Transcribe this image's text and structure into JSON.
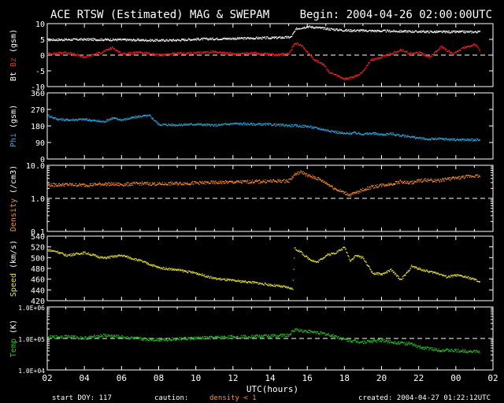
{
  "header": {
    "title": "ACE RTSW (Estimated) MAG & SWEPAM",
    "begin": "Begin: 2004-04-26 02:00:00UTC"
  },
  "footer": {
    "start_doy": "start DOY: 117",
    "caution_label": "caution:",
    "caution_value": "density < 1",
    "created": "created: 2004-04-27 01:22:12UTC"
  },
  "colors": {
    "background": "#000000",
    "axes": "#ffffff",
    "bt": "#ffffff",
    "bz": "#ff2020",
    "phi": "#29a8e0",
    "density": "#ff8c2a",
    "speed": "#e8e030",
    "temp": "#22c822"
  },
  "chart_data": {
    "type": "scatter",
    "x_label": "UTC(hours)",
    "x_ticks": [
      "02",
      "04",
      "06",
      "08",
      "10",
      "12",
      "14",
      "16",
      "18",
      "20",
      "22",
      "00",
      "02"
    ],
    "x_range_hours": [
      2,
      26
    ],
    "panels": [
      {
        "id": "mag",
        "ylabel_parts": [
          {
            "text": "Bt",
            "color": "#ffffff"
          },
          {
            "text": "Bz",
            "color": "#ff2020"
          },
          {
            "text": "(gsm)",
            "color": "#ffffff"
          }
        ],
        "ylim": [
          -10,
          10
        ],
        "scale": "linear",
        "yticks": [
          10,
          5,
          0,
          -5,
          -10
        ],
        "ytick_labels": [
          "10",
          "5",
          "0",
          "-5",
          "-10"
        ],
        "dashed_reference": 0,
        "series": [
          {
            "name": "Bt",
            "color": "#ffffff",
            "points": [
              [
                2,
                5.0
              ],
              [
                4,
                5.1
              ],
              [
                6,
                5.0
              ],
              [
                8,
                4.8
              ],
              [
                9,
                4.9
              ],
              [
                10,
                5.2
              ],
              [
                12,
                5.4
              ],
              [
                14,
                5.6
              ],
              [
                15.1,
                5.8
              ],
              [
                15.4,
                8.5
              ],
              [
                16,
                9.2
              ],
              [
                16.6,
                8.8
              ],
              [
                17.2,
                8.4
              ],
              [
                18,
                8.0
              ],
              [
                19,
                7.9
              ],
              [
                20,
                7.8
              ],
              [
                21,
                7.7
              ],
              [
                22,
                7.6
              ],
              [
                23,
                7.5
              ],
              [
                24,
                7.5
              ],
              [
                25.3,
                7.5
              ]
            ]
          },
          {
            "name": "Bz",
            "color": "#ff2020",
            "points": [
              [
                2,
                0.5
              ],
              [
                3,
                1.0
              ],
              [
                4,
                -0.5
              ],
              [
                5,
                1.2
              ],
              [
                5.5,
                2.5
              ],
              [
                6,
                0.5
              ],
              [
                7,
                1.0
              ],
              [
                8,
                0.2
              ],
              [
                9,
                0.6
              ],
              [
                10,
                0.8
              ],
              [
                11,
                1.2
              ],
              [
                12,
                0.5
              ],
              [
                13,
                0.8
              ],
              [
                14,
                0.3
              ],
              [
                15,
                0.5
              ],
              [
                15.3,
                4.0
              ],
              [
                15.7,
                3.0
              ],
              [
                16,
                1.0
              ],
              [
                16.4,
                -1.5
              ],
              [
                16.8,
                -2.5
              ],
              [
                17.2,
                -5.5
              ],
              [
                17.6,
                -6.5
              ],
              [
                18,
                -7.5
              ],
              [
                18.4,
                -7.0
              ],
              [
                18.8,
                -6.0
              ],
              [
                19.1,
                -4.0
              ],
              [
                19.4,
                -1.5
              ],
              [
                20,
                -0.5
              ],
              [
                20.6,
                0.8
              ],
              [
                21,
                1.8
              ],
              [
                21.6,
                0.5
              ],
              [
                22,
                1.0
              ],
              [
                22.6,
                -0.5
              ],
              [
                23.2,
                2.8
              ],
              [
                23.8,
                0.5
              ],
              [
                24.4,
                2.5
              ],
              [
                25,
                3.5
              ],
              [
                25.3,
                1.5
              ]
            ]
          }
        ]
      },
      {
        "id": "phi",
        "ylabel_parts": [
          {
            "text": "Phi",
            "color": "#29a8e0"
          },
          {
            "text": "(gsm)",
            "color": "#ffffff"
          }
        ],
        "ylim": [
          0,
          360
        ],
        "scale": "linear",
        "yticks": [
          360,
          270,
          180,
          90,
          0
        ],
        "ytick_labels": [
          "360",
          "270",
          "180",
          "90",
          "0"
        ],
        "series": [
          {
            "name": "Phi",
            "color": "#29a8e0",
            "points": [
              [
                2,
                240
              ],
              [
                2.5,
                220
              ],
              [
                3,
                215
              ],
              [
                4,
                218
              ],
              [
                5,
                205
              ],
              [
                5.5,
                225
              ],
              [
                6,
                215
              ],
              [
                7,
                235
              ],
              [
                7.5,
                238
              ],
              [
                8,
                190
              ],
              [
                9,
                188
              ],
              [
                10,
                192
              ],
              [
                11,
                185
              ],
              [
                12,
                195
              ],
              [
                13,
                192
              ],
              [
                14,
                190
              ],
              [
                15,
                185
              ],
              [
                16,
                180
              ],
              [
                16.5,
                170
              ],
              [
                17,
                160
              ],
              [
                17.5,
                150
              ],
              [
                18,
                140
              ],
              [
                18.5,
                145
              ],
              [
                19,
                138
              ],
              [
                19.5,
                142
              ],
              [
                20,
                135
              ],
              [
                20.5,
                140
              ],
              [
                21,
                130
              ],
              [
                21.5,
                125
              ],
              [
                22,
                115
              ],
              [
                22.5,
                110
              ],
              [
                23,
                112
              ],
              [
                24,
                108
              ],
              [
                25,
                106
              ],
              [
                25.3,
                105
              ]
            ]
          }
        ]
      },
      {
        "id": "density",
        "ylabel_parts": [
          {
            "text": "Density",
            "color": "#ff8c2a"
          },
          {
            "text": "(/cm3)",
            "color": "#ffffff"
          }
        ],
        "ylim": [
          0.1,
          10
        ],
        "scale": "log",
        "yticks": [
          10,
          1,
          0.1
        ],
        "ytick_labels": [
          "10.0",
          "1.0",
          "0.1"
        ],
        "dashed_reference": 1,
        "series": [
          {
            "name": "Density",
            "color": "#ff8c2a",
            "points": [
              [
                2,
                2.6
              ],
              [
                3,
                2.7
              ],
              [
                4,
                2.6
              ],
              [
                5,
                2.8
              ],
              [
                6,
                2.7
              ],
              [
                7,
                2.9
              ],
              [
                8,
                2.8
              ],
              [
                9,
                2.9
              ],
              [
                10,
                3.0
              ],
              [
                11,
                3.1
              ],
              [
                12,
                3.2
              ],
              [
                13,
                3.3
              ],
              [
                14,
                3.4
              ],
              [
                15,
                3.5
              ],
              [
                15.3,
                5.5
              ],
              [
                15.7,
                6.5
              ],
              [
                16,
                5.0
              ],
              [
                16.5,
                4.2
              ],
              [
                17,
                3.0
              ],
              [
                17.5,
                2.0
              ],
              [
                18,
                1.5
              ],
              [
                18.3,
                1.3
              ],
              [
                18.7,
                1.6
              ],
              [
                19,
                1.9
              ],
              [
                19.5,
                2.3
              ],
              [
                20,
                2.6
              ],
              [
                20.5,
                2.8
              ],
              [
                21,
                3.3
              ],
              [
                21.5,
                3.0
              ],
              [
                22,
                3.5
              ],
              [
                22.5,
                3.7
              ],
              [
                23,
                3.5
              ],
              [
                23.5,
                4.0
              ],
              [
                24,
                4.2
              ],
              [
                24.5,
                4.6
              ],
              [
                25,
                5.0
              ],
              [
                25.3,
                4.8
              ]
            ]
          }
        ]
      },
      {
        "id": "speed",
        "ylabel_parts": [
          {
            "text": "Speed",
            "color": "#e8e030"
          },
          {
            "text": "(km/s)",
            "color": "#ffffff"
          }
        ],
        "ylim": [
          420,
          540
        ],
        "scale": "linear",
        "yticks": [
          540,
          520,
          500,
          480,
          460,
          440,
          420
        ],
        "ytick_labels": [
          "540",
          "520",
          "500",
          "480",
          "460",
          "440",
          "420"
        ],
        "series": [
          {
            "name": "Speed",
            "color": "#e8e030",
            "points": [
              [
                2,
                515
              ],
              [
                2.5,
                512
              ],
              [
                3,
                505
              ],
              [
                4,
                510
              ],
              [
                5,
                500
              ],
              [
                6,
                505
              ],
              [
                6.5,
                500
              ],
              [
                7,
                495
              ],
              [
                8,
                482
              ],
              [
                9,
                478
              ],
              [
                10,
                472
              ],
              [
                11,
                462
              ],
              [
                12,
                458
              ],
              [
                13,
                455
              ],
              [
                14,
                450
              ],
              [
                15,
                445
              ],
              [
                15.2,
                442
              ],
              [
                15.3,
                518
              ],
              [
                15.6,
                512
              ],
              [
                16,
                500
              ],
              [
                16.5,
                492
              ],
              [
                17,
                505
              ],
              [
                17.5,
                510
              ],
              [
                18,
                520
              ],
              [
                18.3,
                495
              ],
              [
                18.6,
                505
              ],
              [
                19,
                500
              ],
              [
                19.5,
                472
              ],
              [
                20,
                470
              ],
              [
                20.5,
                478
              ],
              [
                21,
                460
              ],
              [
                21.3,
                470
              ],
              [
                21.6,
                485
              ],
              [
                22,
                480
              ],
              [
                22.5,
                475
              ],
              [
                23,
                472
              ],
              [
                23.5,
                465
              ],
              [
                24,
                468
              ],
              [
                24.5,
                465
              ],
              [
                25,
                460
              ],
              [
                25.3,
                455
              ]
            ]
          }
        ]
      },
      {
        "id": "temp",
        "ylabel_parts": [
          {
            "text": "Temp",
            "color": "#22c822"
          },
          {
            "text": "(K)",
            "color": "#ffffff"
          }
        ],
        "ylim": [
          10000,
          1000000
        ],
        "scale": "log",
        "yticks": [
          1000000,
          100000,
          10000
        ],
        "ytick_labels": [
          "1.0E+06",
          "1.0E+05",
          "1.0E+04"
        ],
        "dashed_reference": 100000,
        "series": [
          {
            "name": "Temp",
            "color": "#22c822",
            "points": [
              [
                2,
                110000
              ],
              [
                3,
                120000
              ],
              [
                4,
                105000
              ],
              [
                5,
                130000
              ],
              [
                6,
                115000
              ],
              [
                7,
                100000
              ],
              [
                8,
                95000
              ],
              [
                9,
                100000
              ],
              [
                10,
                105000
              ],
              [
                11,
                110000
              ],
              [
                12,
                115000
              ],
              [
                13,
                120000
              ],
              [
                14,
                125000
              ],
              [
                15,
                130000
              ],
              [
                15.3,
                200000
              ],
              [
                15.8,
                180000
              ],
              [
                16.5,
                160000
              ],
              [
                17,
                140000
              ],
              [
                17.5,
                120000
              ],
              [
                18,
                95000
              ],
              [
                18.5,
                85000
              ],
              [
                19,
                80000
              ],
              [
                19.5,
                85000
              ],
              [
                20,
                90000
              ],
              [
                20.5,
                80000
              ],
              [
                21,
                75000
              ],
              [
                21.5,
                70000
              ],
              [
                22,
                55000
              ],
              [
                22.5,
                50000
              ],
              [
                23,
                45000
              ],
              [
                24,
                42000
              ],
              [
                25,
                40000
              ],
              [
                25.3,
                38000
              ]
            ]
          }
        ]
      }
    ]
  }
}
